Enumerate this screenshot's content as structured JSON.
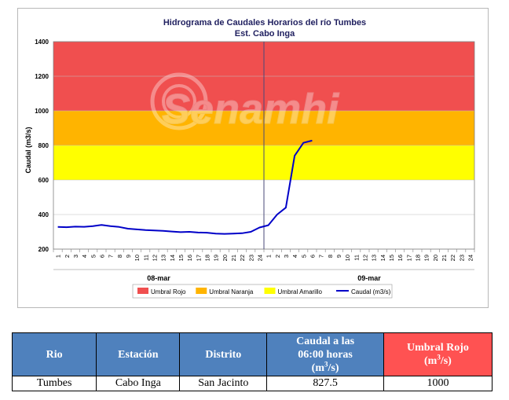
{
  "chart_data": {
    "type": "line",
    "title": "Hidrograma de Caudales Horarios del río Tumbes",
    "subtitle": "Est. Cabo Inga",
    "ylabel": "Caudal  (m3/s)",
    "ylim": [
      200,
      1400
    ],
    "yticks": [
      200,
      400,
      600,
      800,
      1000,
      1200,
      1400
    ],
    "day_groups": [
      {
        "label": "08-mar",
        "hours": [
          "1",
          "2",
          "3",
          "4",
          "5",
          "6",
          "7",
          "8",
          "9",
          "10",
          "11",
          "12",
          "13",
          "14",
          "15",
          "16",
          "17",
          "18",
          "19",
          "20",
          "21",
          "22",
          "23",
          "24"
        ]
      },
      {
        "label": "09-mar",
        "hours": [
          "1",
          "2",
          "3",
          "4",
          "5",
          "6",
          "7",
          "8",
          "9",
          "10",
          "11",
          "12",
          "13",
          "14",
          "15",
          "16",
          "17",
          "18",
          "19",
          "20",
          "21",
          "22",
          "23",
          "24"
        ]
      }
    ],
    "thresholds": [
      {
        "name": "Umbral Rojo",
        "from": 1000,
        "to": 1400,
        "color": "#f04f4f"
      },
      {
        "name": "Umbral Naranja",
        "from": 800,
        "to": 1000,
        "color": "#ffb400"
      },
      {
        "name": "Umbral Amarillo",
        "from": 600,
        "to": 800,
        "color": "#ffff00"
      }
    ],
    "series": [
      {
        "name": "Caudal (m3/s)",
        "color": "#0000c8",
        "values": [
          328,
          327,
          330,
          329,
          333,
          340,
          333,
          328,
          318,
          314,
          310,
          308,
          306,
          302,
          298,
          300,
          296,
          295,
          290,
          288,
          290,
          292,
          300,
          325,
          338,
          400,
          440,
          740,
          815,
          827.5
        ]
      }
    ],
    "watermark": "Senamhi",
    "legend_position": "bottom"
  },
  "table": {
    "headers": {
      "rio": "Rio",
      "estacion": "Estación",
      "distrito": "Distrito",
      "caudal_line1": "Caudal a las",
      "caudal_line2": "06:00 horas",
      "caudal_unit": "(m",
      "caudal_unit_sup": "3",
      "caudal_unit_end": "/s)",
      "umbral_line1": "Umbral Rojo",
      "umbral_unit": "(m",
      "umbral_unit_sup": "3",
      "umbral_unit_end": "/s)"
    },
    "row": {
      "rio": "Tumbes",
      "estacion": "Cabo Inga",
      "distrito": "San Jacinto",
      "caudal": "827.5",
      "umbral_rojo": "1000"
    }
  }
}
